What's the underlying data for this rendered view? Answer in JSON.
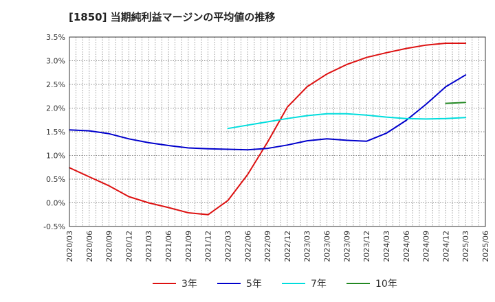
{
  "chart_data": {
    "type": "line",
    "title": "[1850]  当期純利益マージンの平均値の推移",
    "xlabel": "",
    "ylabel": "",
    "ylim": [
      -0.5,
      3.5
    ],
    "y_ticks": [
      "-0.5%",
      "0.0%",
      "0.5%",
      "1.0%",
      "1.5%",
      "2.0%",
      "2.5%",
      "3.0%",
      "3.5%"
    ],
    "y_tick_values": [
      -0.5,
      0,
      0.5,
      1.0,
      1.5,
      2.0,
      2.5,
      3.0,
      3.5
    ],
    "x_ticks": [
      "2020/03",
      "2020/06",
      "2020/09",
      "2020/12",
      "2021/03",
      "2021/06",
      "2021/09",
      "2021/12",
      "2022/03",
      "2022/06",
      "2022/09",
      "2022/12",
      "2023/03",
      "2023/06",
      "2023/09",
      "2023/12",
      "2024/03",
      "2024/06",
      "2024/09",
      "2024/12",
      "2025/03",
      "2025/06"
    ],
    "grid": true,
    "legend_position": "bottom",
    "series": [
      {
        "name": "3年",
        "color": "#dd1111",
        "values": [
          [
            "2020/03",
            0.74
          ],
          [
            "2020/06",
            0.55
          ],
          [
            "2020/09",
            0.36
          ],
          [
            "2020/12",
            0.13
          ],
          [
            "2021/03",
            0.0
          ],
          [
            "2021/06",
            -0.1
          ],
          [
            "2021/09",
            -0.21
          ],
          [
            "2021/12",
            -0.25
          ],
          [
            "2022/03",
            0.05
          ],
          [
            "2022/06",
            0.6
          ],
          [
            "2022/09",
            1.28
          ],
          [
            "2022/12",
            2.02
          ],
          [
            "2023/03",
            2.45
          ],
          [
            "2023/06",
            2.72
          ],
          [
            "2023/09",
            2.92
          ],
          [
            "2023/12",
            3.07
          ],
          [
            "2024/03",
            3.17
          ],
          [
            "2024/06",
            3.26
          ],
          [
            "2024/09",
            3.33
          ],
          [
            "2024/12",
            3.37
          ],
          [
            "2025/03",
            3.37
          ]
        ]
      },
      {
        "name": "5年",
        "color": "#0000cc",
        "values": [
          [
            "2020/03",
            1.54
          ],
          [
            "2020/06",
            1.52
          ],
          [
            "2020/09",
            1.46
          ],
          [
            "2020/12",
            1.35
          ],
          [
            "2021/03",
            1.27
          ],
          [
            "2021/06",
            1.21
          ],
          [
            "2021/09",
            1.16
          ],
          [
            "2021/12",
            1.14
          ],
          [
            "2022/03",
            1.13
          ],
          [
            "2022/06",
            1.12
          ],
          [
            "2022/09",
            1.15
          ],
          [
            "2022/12",
            1.22
          ],
          [
            "2023/03",
            1.31
          ],
          [
            "2023/06",
            1.35
          ],
          [
            "2023/09",
            1.32
          ],
          [
            "2023/12",
            1.3
          ],
          [
            "2024/03",
            1.47
          ],
          [
            "2024/06",
            1.74
          ],
          [
            "2024/09",
            2.08
          ],
          [
            "2024/12",
            2.45
          ],
          [
            "2025/03",
            2.7
          ]
        ]
      },
      {
        "name": "7年",
        "color": "#00dddd",
        "values": [
          [
            "2022/03",
            1.57
          ],
          [
            "2022/06",
            1.64
          ],
          [
            "2022/09",
            1.71
          ],
          [
            "2022/12",
            1.78
          ],
          [
            "2023/03",
            1.84
          ],
          [
            "2023/06",
            1.88
          ],
          [
            "2023/09",
            1.88
          ],
          [
            "2023/12",
            1.85
          ],
          [
            "2024/03",
            1.81
          ],
          [
            "2024/06",
            1.78
          ],
          [
            "2024/09",
            1.77
          ],
          [
            "2024/12",
            1.78
          ],
          [
            "2025/03",
            1.8
          ]
        ]
      },
      {
        "name": "10年",
        "color": "#228822",
        "values": [
          [
            "2024/12",
            2.1
          ],
          [
            "2025/03",
            2.12
          ]
        ]
      }
    ]
  }
}
